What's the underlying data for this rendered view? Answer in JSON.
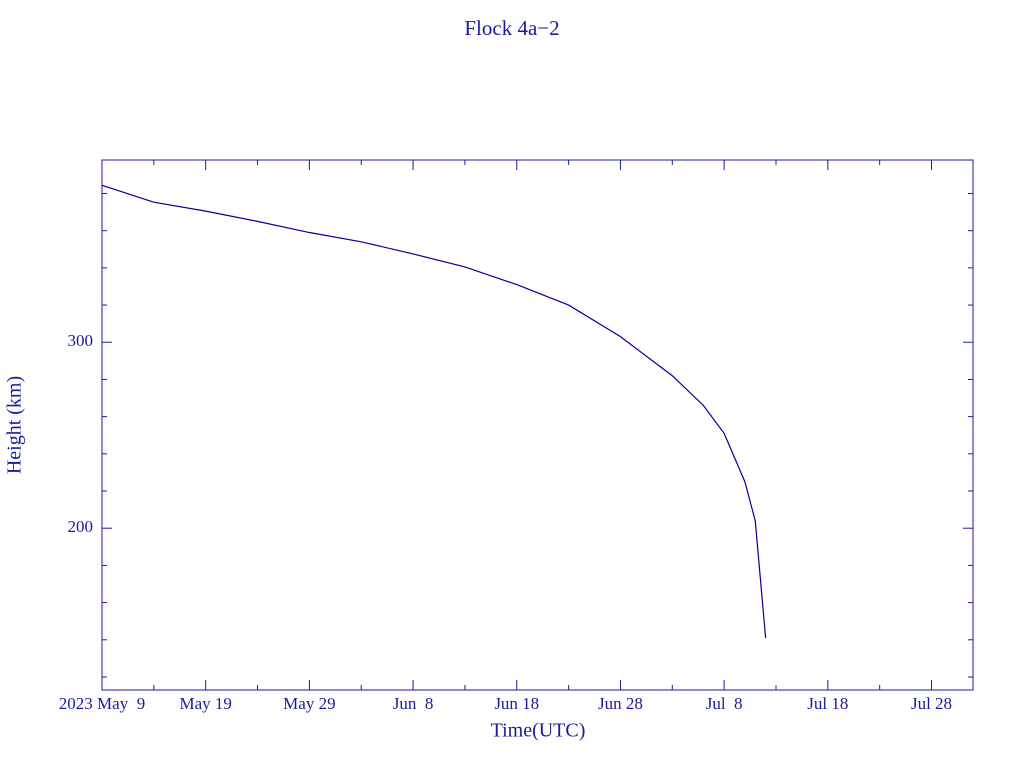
{
  "chart_data": {
    "type": "line",
    "title": "Flock 4a−2",
    "x_label": "Time(UTC)",
    "y_label": "Height (km)",
    "x": [
      "2023-05-09",
      "2023-05-14",
      "2023-05-19",
      "2023-05-24",
      "2023-05-29",
      "2023-06-03",
      "2023-06-08",
      "2023-06-13",
      "2023-06-18",
      "2023-06-23",
      "2023-06-28",
      "2023-07-03",
      "2023-07-06",
      "2023-07-08",
      "2023-07-10",
      "2023-07-11",
      "2023-07-12"
    ],
    "series": [
      {
        "name": "Flock 4a-2",
        "color": "#0000a0",
        "values": [
          384.4,
          375.3,
          370.5,
          365,
          359,
          354,
          347.5,
          340.5,
          331,
          320,
          303,
          282,
          266,
          251,
          225,
          204,
          141
        ]
      }
    ],
    "xlim": [
      "2023-05-09",
      "2023-08-01"
    ],
    "xticks": [
      {
        "value": "2023-05-09",
        "label": "2023 May  9"
      },
      {
        "value": "2023-05-19",
        "label": "May 19"
      },
      {
        "value": "2023-05-29",
        "label": "May 29"
      },
      {
        "value": "2023-06-08",
        "label": "Jun  8"
      },
      {
        "value": "2023-06-18",
        "label": "Jun 18"
      },
      {
        "value": "2023-06-28",
        "label": "Jun 28"
      },
      {
        "value": "2023-07-08",
        "label": "Jul  8"
      },
      {
        "value": "2023-07-18",
        "label": "Jul 18"
      },
      {
        "value": "2023-07-28",
        "label": "Jul 28"
      }
    ],
    "xminorticks": [
      "2023-05-14",
      "2023-05-24",
      "2023-06-03",
      "2023-06-13",
      "2023-06-23",
      "2023-07-03",
      "2023-07-13",
      "2023-07-23"
    ],
    "ylim": [
      113,
      398
    ],
    "yticks": [
      200,
      300
    ],
    "yminorticks": [
      120,
      140,
      160,
      180,
      220,
      240,
      260,
      280,
      320,
      340,
      360,
      380
    ],
    "grid": false
  }
}
